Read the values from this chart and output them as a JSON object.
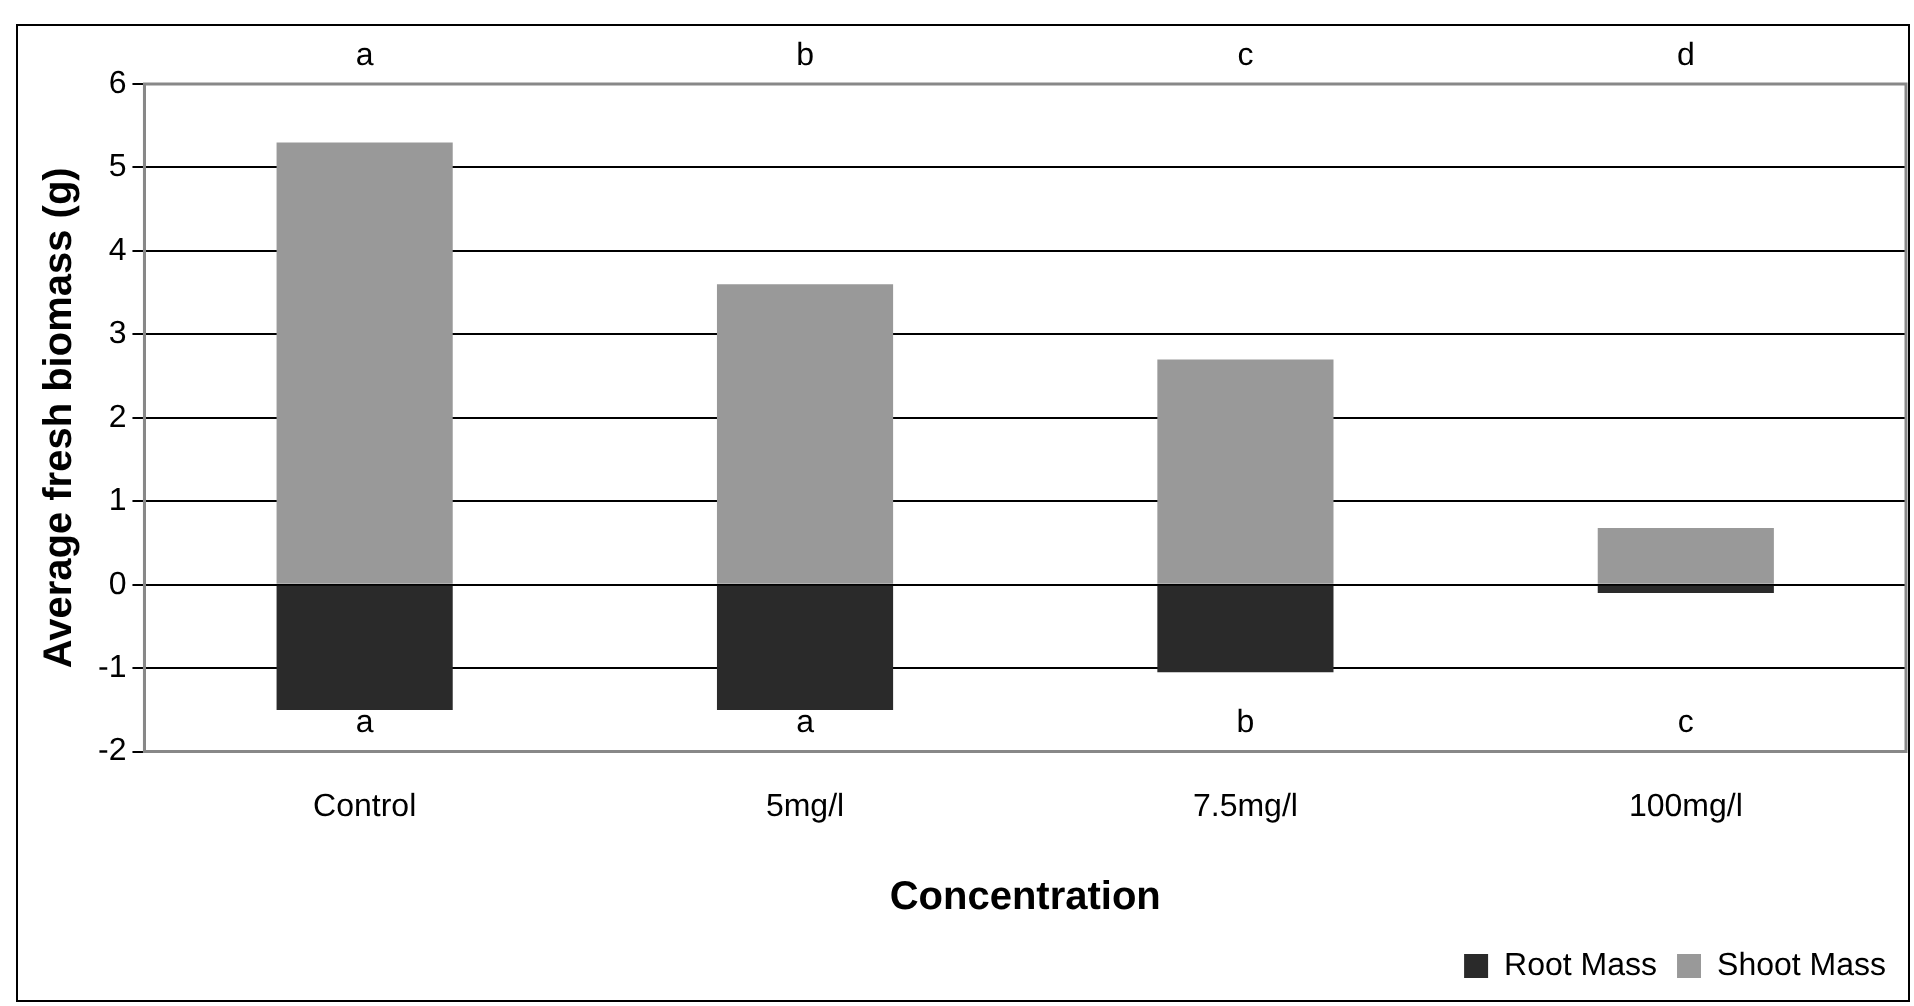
{
  "chart_data": {
    "type": "bar",
    "xlabel": "Concentration",
    "ylabel": "Average fresh biomass (g)",
    "categories": [
      "Control",
      "5mg/l",
      "7.5mg/l",
      "100mg/l"
    ],
    "series": [
      {
        "name": "Root Mass",
        "color": "#2a2a2a",
        "values": [
          -1.5,
          -1.5,
          -1.05,
          -0.1
        ]
      },
      {
        "name": "Shoot Mass",
        "color": "#999999",
        "values": [
          5.3,
          3.6,
          2.7,
          0.68
        ]
      }
    ],
    "stacked": true,
    "ylim": [
      -2,
      6
    ],
    "yticks": [
      -2,
      -1,
      0,
      1,
      2,
      3,
      4,
      5,
      6
    ],
    "grid": "y",
    "legend": "bottom right",
    "annotations": [
      "a",
      "b",
      "c",
      "d",
      "a",
      "a",
      "b",
      "c"
    ]
  }
}
